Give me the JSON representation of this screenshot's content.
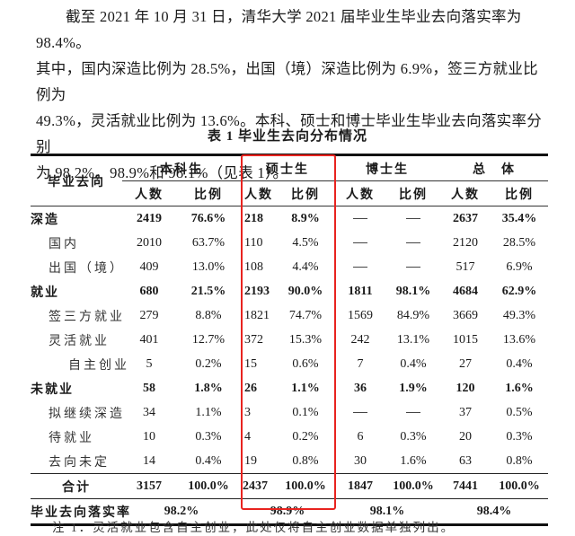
{
  "paragraph": {
    "lines": [
      "截至 2021 年 10 月 31 日，清华大学 2021 届毕业生毕业去向落实率为 98.4%。",
      "其中，国内深造比例为 28.5%，出国（境）深造比例为 6.9%，签三方就业比例为",
      "49.3%，灵活就业比例为 13.6%。本科、硕士和博士毕业生毕业去向落实率分别",
      "为 98.2%，98.9%和 98.1%（见表 1）。"
    ]
  },
  "table": {
    "caption": "表 1 毕业生去向分布情况",
    "row_header": "毕业去向",
    "groups": [
      "本科生",
      "硕士生",
      "博士生",
      "总　体"
    ],
    "sub_headers": [
      "人数",
      "比例"
    ],
    "rows": [
      {
        "label": "深造",
        "level": 0,
        "bold": true,
        "cells": [
          "2419",
          "76.6%",
          "218",
          "8.9%",
          "—",
          "—",
          "2637",
          "35.4%"
        ]
      },
      {
        "label": "国内",
        "level": 1,
        "bold": false,
        "cells": [
          "2010",
          "63.7%",
          "110",
          "4.5%",
          "—",
          "—",
          "2120",
          "28.5%"
        ]
      },
      {
        "label": "出国（境）",
        "level": 1,
        "bold": false,
        "cells": [
          "409",
          "13.0%",
          "108",
          "4.4%",
          "—",
          "—",
          "517",
          "6.9%"
        ]
      },
      {
        "label": "就业",
        "level": 0,
        "bold": true,
        "cells": [
          "680",
          "21.5%",
          "2193",
          "90.0%",
          "1811",
          "98.1%",
          "4684",
          "62.9%"
        ]
      },
      {
        "label": "签三方就业",
        "level": 1,
        "bold": false,
        "cells": [
          "279",
          "8.8%",
          "1821",
          "74.7%",
          "1569",
          "84.9%",
          "3669",
          "49.3%"
        ]
      },
      {
        "label": "灵活就业",
        "level": 1,
        "bold": false,
        "cells": [
          "401",
          "12.7%",
          "372",
          "15.3%",
          "242",
          "13.1%",
          "1015",
          "13.6%"
        ]
      },
      {
        "label": "自主创业",
        "level": 2,
        "bold": false,
        "cells": [
          "5",
          "0.2%",
          "15",
          "0.6%",
          "7",
          "0.4%",
          "27",
          "0.4%"
        ]
      },
      {
        "label": "未就业",
        "level": 0,
        "bold": true,
        "cells": [
          "58",
          "1.8%",
          "26",
          "1.1%",
          "36",
          "1.9%",
          "120",
          "1.6%"
        ]
      },
      {
        "label": "拟继续深造",
        "level": 1,
        "bold": false,
        "cells": [
          "34",
          "1.1%",
          "3",
          "0.1%",
          "—",
          "—",
          "37",
          "0.5%"
        ]
      },
      {
        "label": "待就业",
        "level": 1,
        "bold": false,
        "cells": [
          "10",
          "0.3%",
          "4",
          "0.2%",
          "6",
          "0.3%",
          "20",
          "0.3%"
        ]
      },
      {
        "label": "去向未定",
        "level": 1,
        "bold": false,
        "cells": [
          "14",
          "0.4%",
          "19",
          "0.8%",
          "30",
          "1.6%",
          "63",
          "0.8%"
        ]
      }
    ],
    "total": {
      "label": "合计",
      "cells": [
        "3157",
        "100.0%",
        "2437",
        "100.0%",
        "1847",
        "100.0%",
        "7441",
        "100.0%"
      ]
    },
    "rate": {
      "label": "毕业去向落实率",
      "cells": [
        "98.2%",
        "98.9%",
        "98.1%",
        "98.4%"
      ]
    },
    "highlight": {
      "column_group": "硕士生",
      "color": "#e8231f"
    }
  },
  "note": "注 1．灵活就业包含自主创业，此处仅将自主创业数据单独列出。"
}
